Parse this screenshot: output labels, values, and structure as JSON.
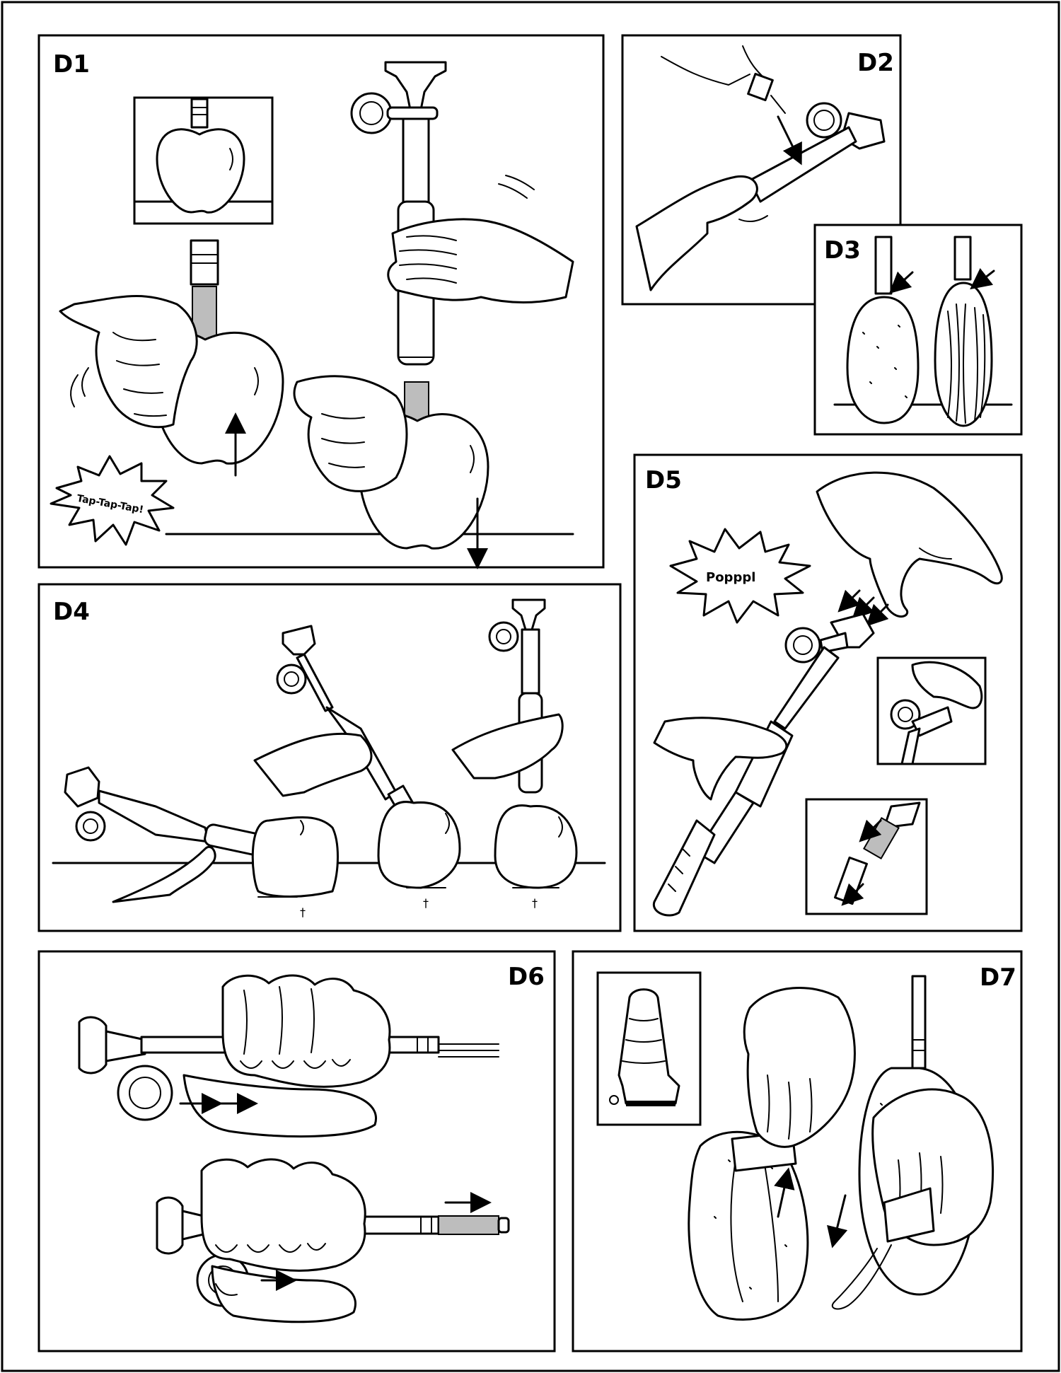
{
  "panels": {
    "d1": {
      "label": "D1",
      "burst_text": "Tap-Tap-Tap!"
    },
    "d2": {
      "label": "D2"
    },
    "d3": {
      "label": "D3"
    },
    "d4": {
      "label": "D4",
      "marks": [
        "†",
        "†",
        "†"
      ]
    },
    "d5": {
      "label": "D5",
      "burst_text": "Popppl"
    },
    "d6": {
      "label": "D6"
    },
    "d7": {
      "label": "D7"
    }
  }
}
